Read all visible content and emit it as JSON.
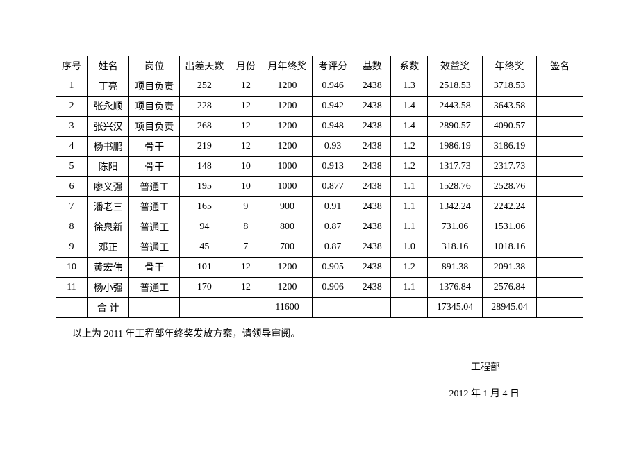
{
  "table": {
    "columns": [
      "序号",
      "姓名",
      "岗位",
      "出差天数",
      "月份",
      "月年终奖",
      "考评分",
      "基数",
      "系数",
      "效益奖",
      "年终奖",
      "签名"
    ],
    "col_classes": [
      "col-seq",
      "col-name",
      "col-post",
      "col-trip",
      "col-month",
      "col-mbonus",
      "col-score",
      "col-base",
      "col-coef",
      "col-eff",
      "col-year",
      "col-sign"
    ],
    "rows": [
      [
        "1",
        "丁亮",
        "项目负责",
        "252",
        "12",
        "1200",
        "0.946",
        "2438",
        "1.3",
        "2518.53",
        "3718.53",
        ""
      ],
      [
        "2",
        "张永顺",
        "项目负责",
        "228",
        "12",
        "1200",
        "0.942",
        "2438",
        "1.4",
        "2443.58",
        "3643.58",
        ""
      ],
      [
        "3",
        "张兴汉",
        "项目负责",
        "268",
        "12",
        "1200",
        "0.948",
        "2438",
        "1.4",
        "2890.57",
        "4090.57",
        ""
      ],
      [
        "4",
        "杨书鹏",
        "骨干",
        "219",
        "12",
        "1200",
        "0.93",
        "2438",
        "1.2",
        "1986.19",
        "3186.19",
        ""
      ],
      [
        "5",
        "陈阳",
        "骨干",
        "148",
        "10",
        "1000",
        "0.913",
        "2438",
        "1.2",
        "1317.73",
        "2317.73",
        ""
      ],
      [
        "6",
        "廖义强",
        "普通工",
        "195",
        "10",
        "1000",
        "0.877",
        "2438",
        "1.1",
        "1528.76",
        "2528.76",
        ""
      ],
      [
        "7",
        "潘老三",
        "普通工",
        "165",
        "9",
        "900",
        "0.91",
        "2438",
        "1.1",
        "1342.24",
        "2242.24",
        ""
      ],
      [
        "8",
        "徐泉新",
        "普通工",
        "94",
        "8",
        "800",
        "0.87",
        "2438",
        "1.1",
        "731.06",
        "1531.06",
        ""
      ],
      [
        "9",
        "邓正",
        "普通工",
        "45",
        "7",
        "700",
        "0.87",
        "2438",
        "1.0",
        "318.16",
        "1018.16",
        ""
      ],
      [
        "10",
        "黄宏伟",
        "骨干",
        "101",
        "12",
        "1200",
        "0.905",
        "2438",
        "1.2",
        "891.38",
        "2091.38",
        ""
      ],
      [
        "11",
        "杨小强",
        "普通工",
        "170",
        "12",
        "1200",
        "0.906",
        "2438",
        "1.1",
        "1376.84",
        "2576.84",
        ""
      ]
    ],
    "total_row": [
      "",
      "合 计",
      "",
      "",
      "",
      "11600",
      "",
      "",
      "",
      "17345.04",
      "28945.04",
      ""
    ]
  },
  "note": "以上为 2011 年工程部年终奖发放方案，请领导审阅。",
  "dept": "工程部",
  "date": "2012 年 1 月 4 日"
}
